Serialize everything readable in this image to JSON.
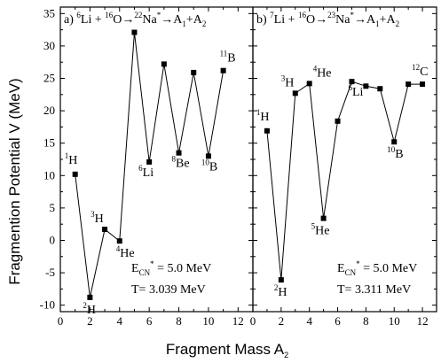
{
  "figure": {
    "ylabel": "Fragmention Potential V (MeV)",
    "xlabel": {
      "main": "Fragment Mass A",
      "sub": "2"
    }
  },
  "chart_data": [
    {
      "type": "line",
      "panel": "a",
      "title": {
        "prefix": "a) ",
        "m1": "6",
        "e1": "Li + ",
        "m2": "16",
        "e2": "O",
        "m3": "22",
        "e3": "Na",
        "star": "*",
        "products": "A",
        "sub1": "1",
        "plus": "+A",
        "sub2": "2"
      },
      "xlim": [
        0,
        13
      ],
      "ylim": [
        -11,
        36
      ],
      "xticks": [
        0,
        2,
        4,
        6,
        8,
        10,
        12
      ],
      "yticks": [
        -10,
        -5,
        0,
        5,
        10,
        15,
        20,
        25,
        30,
        35
      ],
      "grid": false,
      "series": [
        {
          "x": [
            1,
            2,
            3,
            4,
            5,
            6,
            7,
            8,
            9,
            10,
            11
          ],
          "y": [
            10.2,
            -8.8,
            1.7,
            -0.1,
            32.1,
            12.1,
            27.2,
            13.5,
            25.9,
            13.0,
            26.2
          ]
        }
      ],
      "point_labels": [
        {
          "x": 1,
          "mass": "1",
          "elem": "H"
        },
        {
          "x": 2,
          "mass": "2",
          "elem": "H"
        },
        {
          "x": 3,
          "mass": "3",
          "elem": "H"
        },
        {
          "x": 4,
          "mass": "4",
          "elem": "He"
        },
        {
          "x": 6,
          "mass": "6",
          "elem": "Li"
        },
        {
          "x": 8,
          "mass": "8",
          "elem": "Be"
        },
        {
          "x": 10,
          "mass": "10",
          "elem": "B"
        },
        {
          "x": 11,
          "mass": "11",
          "elem": "B"
        }
      ],
      "annotation": {
        "e_main": "E",
        "e_sub": "CN",
        "e_sup": "*",
        "e_value": " = 5.0 MeV",
        "t_line": "T= 3.039 MeV"
      }
    },
    {
      "type": "line",
      "panel": "b",
      "title": {
        "prefix": "b) ",
        "m1": "7",
        "e1": "Li + ",
        "m2": "16",
        "e2": "O",
        "m3": "23",
        "e3": "Na",
        "star": "*",
        "products": "A",
        "sub1": "1",
        "plus": "+A",
        "sub2": "2"
      },
      "xlim": [
        0,
        13
      ],
      "ylim": [
        -11,
        36
      ],
      "xticks": [
        0,
        2,
        4,
        6,
        8,
        10,
        12
      ],
      "yticks": [
        -10,
        -5,
        0,
        5,
        10,
        15,
        20,
        25,
        30,
        35
      ],
      "grid": false,
      "series": [
        {
          "x": [
            1,
            2,
            3,
            4,
            5,
            6,
            7,
            8,
            9,
            10,
            11,
            12
          ],
          "y": [
            16.9,
            -6.1,
            22.7,
            24.2,
            3.4,
            18.4,
            24.5,
            23.8,
            23.4,
            15.2,
            24.1,
            24.1
          ]
        }
      ],
      "point_labels": [
        {
          "x": 1,
          "mass": "1",
          "elem": "H"
        },
        {
          "x": 2,
          "mass": "2",
          "elem": "H"
        },
        {
          "x": 3,
          "mass": "3",
          "elem": "H"
        },
        {
          "x": 4,
          "mass": "4",
          "elem": "He"
        },
        {
          "x": 5,
          "mass": "5",
          "elem": "He"
        },
        {
          "x": 7,
          "mass": "6",
          "elem": "Li"
        },
        {
          "x": 10,
          "mass": "10",
          "elem": "B"
        },
        {
          "x": 12,
          "mass": "12",
          "elem": "C"
        }
      ],
      "annotation": {
        "e_main": "E",
        "e_sub": "CN",
        "e_sup": "*",
        "e_value": " = 5.0 MeV",
        "t_line": "T= 3.311 MeV"
      }
    }
  ]
}
